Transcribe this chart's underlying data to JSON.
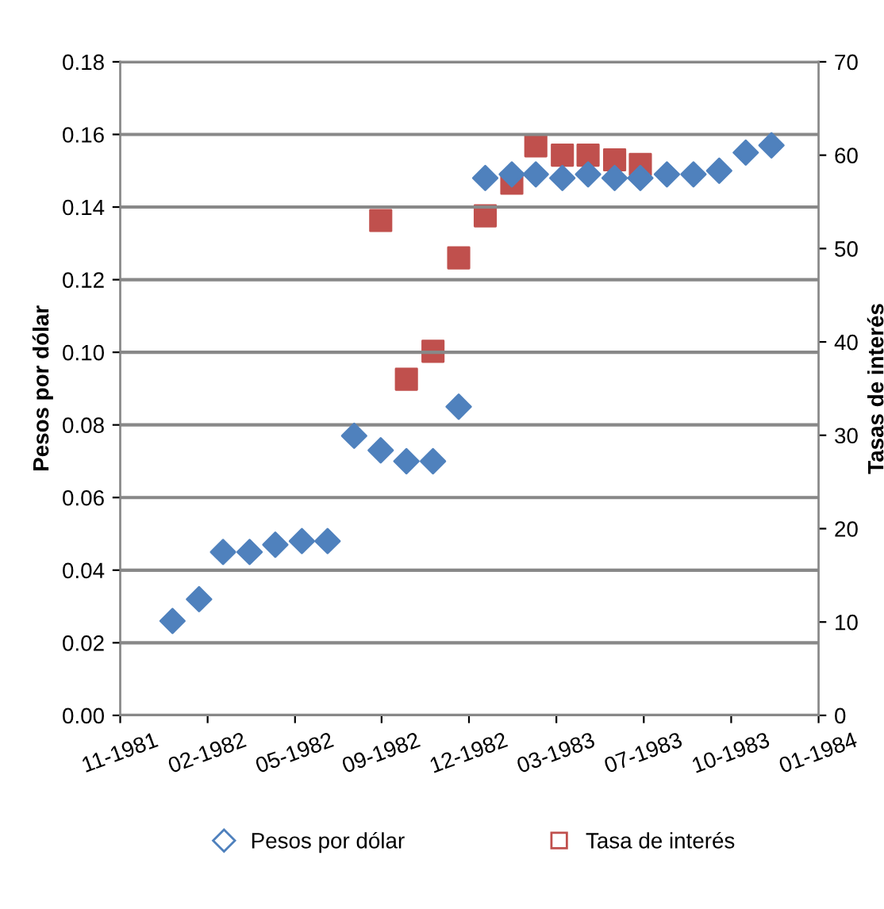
{
  "chart_data": {
    "type": "scatter",
    "ylabel": "Pesos por dólar",
    "y2label": "Tasas de interés",
    "x": [
      "1982-01",
      "1982-02",
      "1982-03",
      "1982-04",
      "1982-05",
      "1982-06",
      "1982-07",
      "1982-08",
      "1982-09",
      "1982-10",
      "1982-11",
      "1982-12",
      "1983-01",
      "1983-02",
      "1983-03",
      "1983-04",
      "1983-05",
      "1983-06",
      "1983-07",
      "1983-08",
      "1983-09",
      "1983-10",
      "1983-11",
      "1983-12"
    ],
    "series": [
      {
        "name": "Pesos por dólar",
        "color": "#4f81bd",
        "marker": "diamond",
        "values": [
          0.026,
          0.032,
          0.045,
          0.045,
          0.047,
          0.048,
          0.048,
          0.077,
          0.073,
          0.07,
          0.07,
          0.085,
          0.148,
          0.149,
          0.149,
          0.148,
          0.149,
          0.148,
          0.148,
          0.149,
          0.149,
          0.15,
          0.155,
          0.157
        ]
      },
      {
        "name": "Tasa de interés",
        "color": "#c0504d",
        "marker": "square",
        "axis": "y2",
        "x": [
          "1982-09",
          "1982-10",
          "1982-11",
          "1982-12",
          "1983-01",
          "1983-02",
          "1983-03",
          "1983-04",
          "1983-05",
          "1983-06",
          "1983-07"
        ],
        "values": [
          53,
          36,
          39,
          49,
          53.5,
          57,
          61,
          60,
          60,
          59.5,
          59
        ]
      }
    ],
    "xlim": [
      "1981-11-01",
      "1984-01-25"
    ],
    "xticks": [
      {
        "value": "1981-11-01",
        "label": "11-1981"
      },
      {
        "value": "1982-02-11",
        "label": "02-1982"
      },
      {
        "value": "1982-05-24",
        "label": "05-1982"
      },
      {
        "value": "1982-09-02",
        "label": "09-1982"
      },
      {
        "value": "1982-12-13",
        "label": "12-1982"
      },
      {
        "value": "1983-03-25",
        "label": "03-1983"
      },
      {
        "value": "1983-07-05",
        "label": "07-1983"
      },
      {
        "value": "1983-10-15",
        "label": "10-1983"
      },
      {
        "value": "1984-01-25",
        "label": "01-1984"
      }
    ],
    "ylim": [
      0,
      0.18
    ],
    "yticks": [
      {
        "value": 0,
        "label": "0.00"
      },
      {
        "value": 0.02,
        "label": "0.02"
      },
      {
        "value": 0.04,
        "label": "0.04"
      },
      {
        "value": 0.06,
        "label": "0.06"
      },
      {
        "value": 0.08,
        "label": "0.08"
      },
      {
        "value": 0.1,
        "label": "0.10"
      },
      {
        "value": 0.12,
        "label": "0.12"
      },
      {
        "value": 0.14,
        "label": "0.14"
      },
      {
        "value": 0.16,
        "label": "0.16"
      },
      {
        "value": 0.18,
        "label": "0.18"
      }
    ],
    "y2lim": [
      0,
      70
    ],
    "y2ticks": [
      0,
      10,
      20,
      30,
      40,
      50,
      60,
      70
    ],
    "grid": "y",
    "legend": "bottom"
  }
}
